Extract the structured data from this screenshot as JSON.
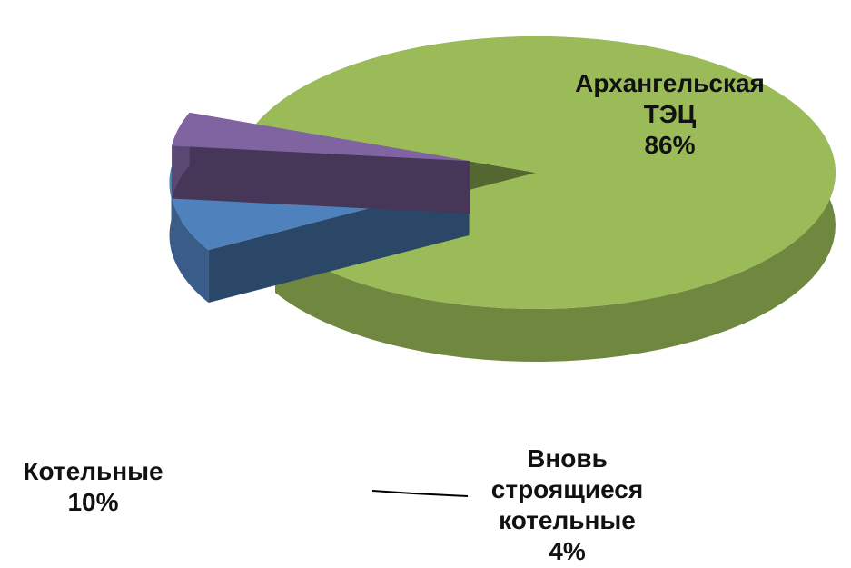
{
  "chart_data": {
    "type": "pie",
    "categories": [
      "Архангельская ТЭЦ",
      "Котельные",
      "Вновь строящиеся котельные"
    ],
    "values": [
      86,
      10,
      4
    ],
    "value_labels": [
      "86%",
      "10%",
      "4%"
    ],
    "colors": [
      "#9bbb59",
      "#4f81bd",
      "#8064a2"
    ]
  }
}
